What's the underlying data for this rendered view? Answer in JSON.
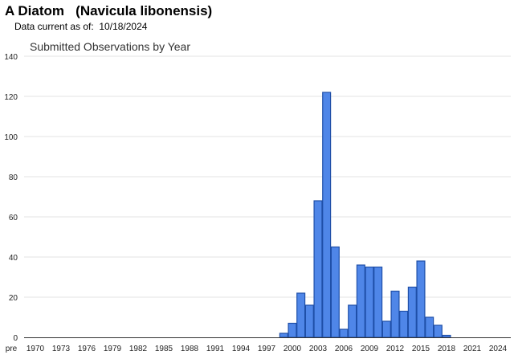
{
  "header": {
    "title": "A Diatom   (Navicula libonensis)",
    "data_current": "Data current as of:  10/18/2024"
  },
  "chart_data": {
    "type": "bar",
    "title": "Submitted Observations by Year",
    "xlabel": "",
    "ylabel": "",
    "ylim": [
      0,
      140
    ],
    "yticks": [
      0,
      20,
      40,
      60,
      80,
      100,
      120,
      140
    ],
    "grid": true,
    "bar_color": "#4f86e8",
    "bar_edge_color": "#1f4fa8",
    "x_tick_labels": [
      "pre",
      "1970",
      "1973",
      "1976",
      "1979",
      "1982",
      "1985",
      "1988",
      "1991",
      "1994",
      "1997",
      "2000",
      "2003",
      "2006",
      "2009",
      "2012",
      "2015",
      "2018",
      "2021",
      "2024"
    ],
    "categories": [
      "1999",
      "2000",
      "2001",
      "2002",
      "2003",
      "2004",
      "2005",
      "2006",
      "2007",
      "2008",
      "2009",
      "2010",
      "2011",
      "2012",
      "2013",
      "2014",
      "2015",
      "2016",
      "2017",
      "2018"
    ],
    "values": [
      2,
      7,
      22,
      16,
      68,
      122,
      45,
      4,
      16,
      36,
      35,
      35,
      8,
      23,
      13,
      25,
      38,
      10,
      6,
      1
    ]
  }
}
